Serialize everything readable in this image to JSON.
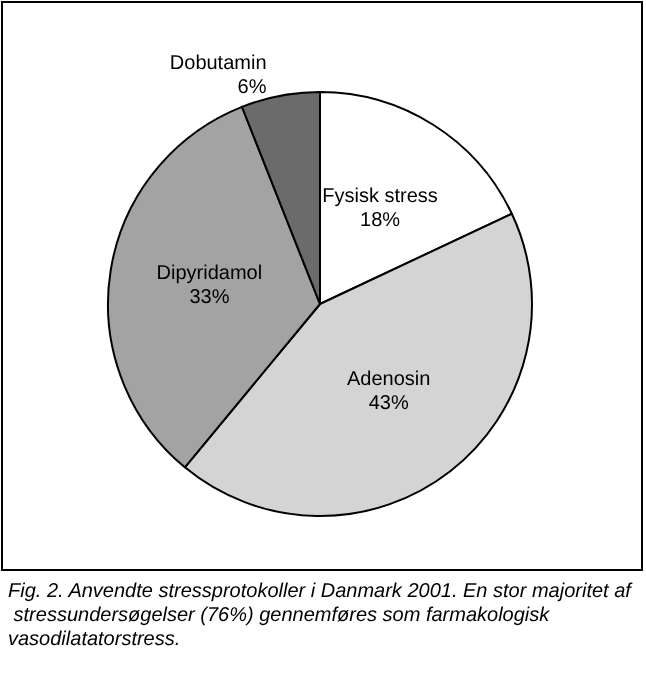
{
  "chart_data": {
    "type": "pie",
    "categories": [
      "Fysisk stress",
      "Adenosin",
      "Dipyridamol",
      "Dobutamin"
    ],
    "values": [
      18,
      43,
      33,
      6
    ],
    "colors": [
      "#ffffff",
      "#d4d4d4",
      "#a3a3a3",
      "#6b6b6b"
    ],
    "value_labels": [
      "18%",
      "43%",
      "33%",
      "6%"
    ],
    "legend": false,
    "annotations": [
      "Fig. 2. Anvendte stressprotokoller i Danmark 2001. En stor majoritet af stressundersøgelser (76%) gennemføres som farmakologisk vasodilatatorstress."
    ]
  }
}
